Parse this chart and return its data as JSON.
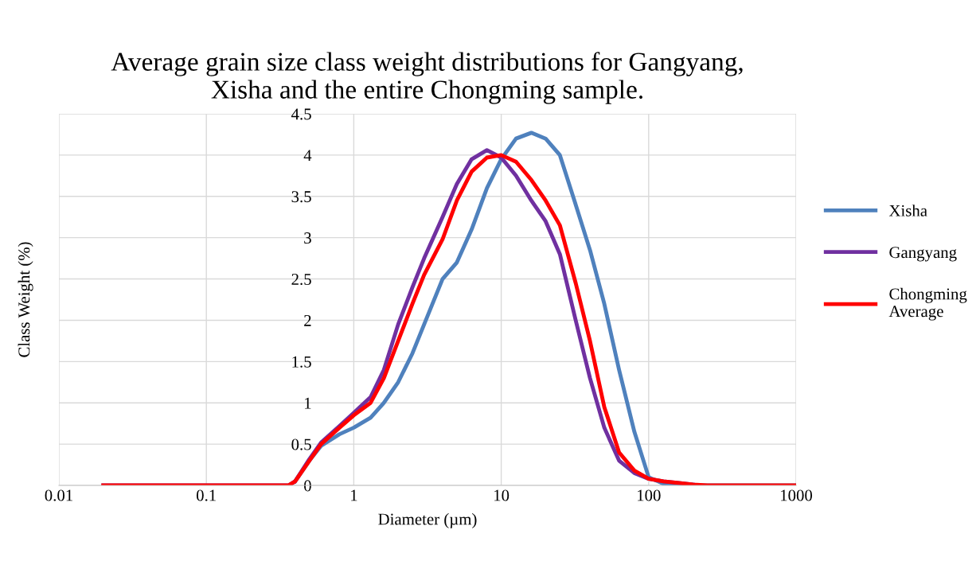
{
  "chart_data": {
    "type": "line",
    "title": "Average grain size class weight distributions for Gangyang,\nXisha and the entire Chongming sample.",
    "xlabel": "Diameter (µm)",
    "ylabel": "Class Weight (%)",
    "log": "x",
    "grid": true,
    "legend": "right",
    "marker": "none",
    "line_style": "solid",
    "xlim": [
      0.01,
      1000
    ],
    "xticks": [
      0.01,
      0.1,
      1,
      10,
      100,
      1000
    ],
    "ylim": [
      0,
      4.5
    ],
    "yticks": [
      0,
      0.5,
      1,
      1.5,
      2,
      2.5,
      3,
      3.5,
      4,
      4.5
    ],
    "series": [
      {
        "name": "Xisha",
        "color": "#4f81bd",
        "x": [
          0.4,
          0.5,
          0.6,
          0.8,
          1,
          1.3,
          1.6,
          2,
          2.5,
          3,
          4,
          5,
          6.3,
          8,
          10,
          12.6,
          16,
          20,
          25,
          32,
          40,
          50,
          63,
          80,
          100,
          126,
          160,
          1000
        ],
        "values": [
          0.05,
          0.3,
          0.48,
          0.62,
          0.7,
          0.82,
          1.0,
          1.25,
          1.6,
          1.95,
          2.5,
          2.7,
          3.1,
          3.6,
          3.95,
          4.2,
          4.27,
          4.2,
          4.0,
          3.4,
          2.85,
          2.2,
          1.4,
          0.65,
          0.1,
          0.02,
          0,
          0
        ]
      },
      {
        "name": "Gangyang",
        "color": "#7030a0",
        "x": [
          0.02,
          0.36,
          0.4,
          0.5,
          0.6,
          0.8,
          1,
          1.3,
          1.6,
          2,
          2.5,
          3,
          4,
          5,
          6.3,
          8,
          10,
          12.6,
          16,
          20,
          25,
          32,
          40,
          50,
          63,
          80,
          100,
          126,
          160,
          200
        ],
        "values": [
          0,
          0,
          0.05,
          0.32,
          0.52,
          0.72,
          0.88,
          1.07,
          1.4,
          1.95,
          2.4,
          2.75,
          3.25,
          3.65,
          3.95,
          4.06,
          3.97,
          3.75,
          3.45,
          3.2,
          2.8,
          2.0,
          1.3,
          0.7,
          0.3,
          0.15,
          0.08,
          0.05,
          0.03,
          0.01
        ]
      },
      {
        "name": "Chongming\nAverage",
        "color": "#ff0000",
        "x": [
          0.02,
          0.36,
          0.4,
          0.5,
          0.6,
          0.8,
          1,
          1.3,
          1.6,
          2,
          2.5,
          3,
          4,
          5,
          6.3,
          8,
          10,
          12.6,
          16,
          20,
          25,
          32,
          40,
          50,
          63,
          80,
          100,
          126,
          160,
          200,
          250,
          1000
        ],
        "values": [
          0,
          0,
          0.05,
          0.3,
          0.5,
          0.7,
          0.85,
          1.0,
          1.3,
          1.75,
          2.2,
          2.55,
          2.98,
          3.45,
          3.8,
          3.97,
          4.0,
          3.92,
          3.7,
          3.45,
          3.15,
          2.45,
          1.75,
          0.95,
          0.4,
          0.18,
          0.08,
          0.05,
          0.03,
          0.01,
          0,
          0
        ]
      }
    ]
  }
}
